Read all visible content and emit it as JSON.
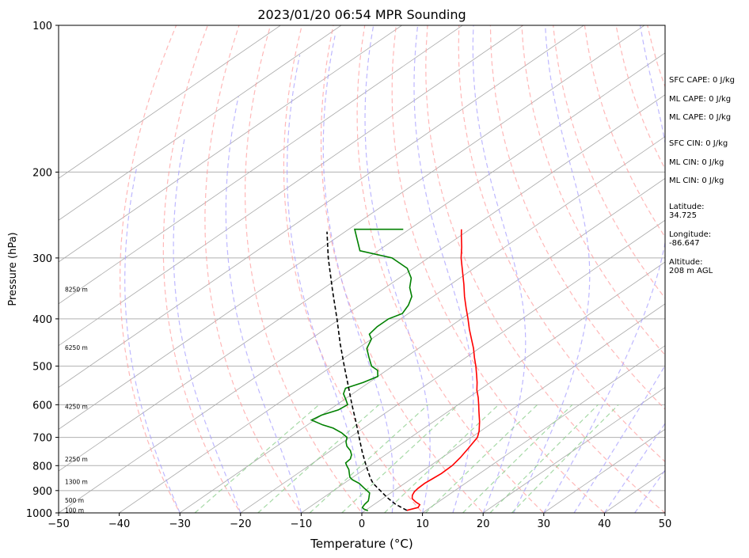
{
  "chart_data": {
    "type": "line",
    "title": "2023/01/20 06:54 MPR Sounding",
    "xlabel": "Temperature (°C)",
    "ylabel": "Pressure (hPa)",
    "xlim": [
      -50,
      50
    ],
    "ylim": [
      1000,
      100
    ],
    "y_scale": "log",
    "skew": true,
    "grid": true,
    "x_ticks": [
      -50,
      -40,
      -30,
      -20,
      -10,
      0,
      10,
      20,
      30,
      40,
      50
    ],
    "x_tick_labels": [
      "−50",
      "−40",
      "−30",
      "−20",
      "−10",
      "0",
      "10",
      "20",
      "30",
      "40",
      "50"
    ],
    "y_ticks": [
      1000,
      900,
      800,
      700,
      600,
      500,
      400,
      300,
      200,
      100
    ],
    "y_tick_labels": [
      "1000",
      "900",
      "800",
      "700",
      "600",
      "500",
      "400",
      "300",
      "200",
      "100"
    ],
    "series": [
      {
        "kind": "temperature",
        "color": "#ff0000",
        "points": [
          [
            988,
            6.8
          ],
          [
            975,
            8.0
          ],
          [
            962,
            7.6
          ],
          [
            950,
            6.3
          ],
          [
            935,
            4.9
          ],
          [
            920,
            4.1
          ],
          [
            905,
            3.6
          ],
          [
            890,
            3.4
          ],
          [
            870,
            3.3
          ],
          [
            850,
            3.5
          ],
          [
            830,
            3.7
          ],
          [
            800,
            3.6
          ],
          [
            770,
            3.0
          ],
          [
            740,
            2.2
          ],
          [
            700,
            1.0
          ],
          [
            680,
            -0.2
          ],
          [
            650,
            -2.4
          ],
          [
            620,
            -4.9
          ],
          [
            600,
            -6.6
          ],
          [
            580,
            -8.4
          ],
          [
            560,
            -10.4
          ],
          [
            540,
            -12.2
          ],
          [
            520,
            -14.2
          ],
          [
            500,
            -16.3
          ],
          [
            480,
            -18.6
          ],
          [
            460,
            -20.9
          ],
          [
            440,
            -23.5
          ],
          [
            420,
            -26.2
          ],
          [
            400,
            -28.9
          ],
          [
            380,
            -31.8
          ],
          [
            360,
            -34.8
          ],
          [
            340,
            -37.8
          ],
          [
            320,
            -41.1
          ],
          [
            300,
            -44.6
          ],
          [
            285,
            -47.1
          ],
          [
            270,
            -49.9
          ],
          [
            262,
            -51.4
          ]
        ]
      },
      {
        "kind": "dewpoint",
        "color": "#008000",
        "points": [
          [
            990,
            0.5
          ],
          [
            982,
            -0.6
          ],
          [
            975,
            -1.2
          ],
          [
            960,
            -1.6
          ],
          [
            945,
            -1.8
          ],
          [
            930,
            -2.5
          ],
          [
            910,
            -3.5
          ],
          [
            890,
            -5.5
          ],
          [
            870,
            -7.5
          ],
          [
            855,
            -9.5
          ],
          [
            845,
            -10.5
          ],
          [
            830,
            -11.5
          ],
          [
            815,
            -12.5
          ],
          [
            800,
            -13.8
          ],
          [
            790,
            -14.6
          ],
          [
            775,
            -14.8
          ],
          [
            760,
            -15.6
          ],
          [
            745,
            -16.8
          ],
          [
            730,
            -18.4
          ],
          [
            715,
            -19.6
          ],
          [
            700,
            -20.5
          ],
          [
            685,
            -22.5
          ],
          [
            670,
            -25.0
          ],
          [
            660,
            -27.5
          ],
          [
            645,
            -30.5
          ],
          [
            630,
            -30.0
          ],
          [
            615,
            -28.5
          ],
          [
            600,
            -28.2
          ],
          [
            585,
            -29.8
          ],
          [
            570,
            -31.5
          ],
          [
            555,
            -32.5
          ],
          [
            540,
            -31.0
          ],
          [
            525,
            -30.0
          ],
          [
            510,
            -31.5
          ],
          [
            500,
            -33.5
          ],
          [
            480,
            -36.0
          ],
          [
            460,
            -38.5
          ],
          [
            440,
            -40.0
          ],
          [
            430,
            -41.5
          ],
          [
            415,
            -42.0
          ],
          [
            400,
            -42.0
          ],
          [
            390,
            -41.0
          ],
          [
            375,
            -42.0
          ],
          [
            360,
            -43.5
          ],
          [
            345,
            -46.0
          ],
          [
            330,
            -48.0
          ],
          [
            315,
            -51.0
          ],
          [
            300,
            -56.0
          ],
          [
            290,
            -63.0
          ],
          [
            262,
            -69.0
          ],
          [
            262,
            -61.0
          ]
        ]
      },
      {
        "kind": "parcel",
        "color": "#000000",
        "dash": "dashed",
        "points": [
          [
            988,
            6.8
          ],
          [
            960,
            3.5
          ],
          [
            930,
            0.5
          ],
          [
            900,
            -2.3
          ],
          [
            870,
            -5.2
          ],
          [
            850,
            -6.8
          ],
          [
            800,
            -10.6
          ],
          [
            750,
            -14.5
          ],
          [
            700,
            -18.5
          ],
          [
            650,
            -22.8
          ],
          [
            600,
            -27.5
          ],
          [
            550,
            -32.5
          ],
          [
            500,
            -38.0
          ],
          [
            450,
            -44.0
          ],
          [
            400,
            -50.5
          ],
          [
            350,
            -58.0
          ],
          [
            300,
            -66.5
          ],
          [
            265,
            -73.0
          ]
        ]
      }
    ],
    "reference_lines": {
      "dry_adiabats": "red dashed",
      "moist_adiabats": "blue dashed",
      "mixing_ratio": "green dashed",
      "isotherms": "gray solid"
    },
    "height_labels": [
      {
        "text": "100 m",
        "p": 987
      },
      {
        "text": "500 m",
        "p": 942
      },
      {
        "text": "1300 m",
        "p": 863
      },
      {
        "text": "2250 m",
        "p": 776
      },
      {
        "text": "4250 m",
        "p": 605
      },
      {
        "text": "6250 m",
        "p": 458
      },
      {
        "text": "8250 m",
        "p": 348
      }
    ],
    "stats": {
      "sfc_cape": "SFC CAPE: 0 J/kg",
      "ml_cape": "ML CAPE: 0 J/kg",
      "ml_cape_2": "ML CAPE: 0 J/kg",
      "sfc_cin": "SFC CIN: 0 J/kg",
      "ml_cin": "ML CIN: 0 J/kg",
      "ml_cin_2": "ML CIN: 0 J/kg",
      "latitude_label": "Latitude:",
      "latitude_value": "34.725",
      "longitude_label": "Longitude:",
      "longitude_value": "-86.647",
      "altitude_label": "Altitude:",
      "altitude_value": "208 m AGL"
    }
  }
}
